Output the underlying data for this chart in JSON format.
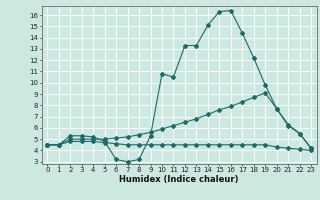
{
  "xlabel": "Humidex (Indice chaleur)",
  "ylabel": "",
  "xlim": [
    -0.5,
    23.5
  ],
  "ylim": [
    2.8,
    16.8
  ],
  "xticks": [
    0,
    1,
    2,
    3,
    4,
    5,
    6,
    7,
    8,
    9,
    10,
    11,
    12,
    13,
    14,
    15,
    16,
    17,
    18,
    19,
    20,
    21,
    22,
    23
  ],
  "yticks": [
    3,
    4,
    5,
    6,
    7,
    8,
    9,
    10,
    11,
    12,
    13,
    14,
    15,
    16
  ],
  "background_color": "#cce8e0",
  "grid_color": "#ffffff",
  "line_color": "#1a6b6b",
  "line1_x": [
    0,
    1,
    2,
    3,
    4,
    5,
    6,
    7,
    8,
    9,
    10,
    11,
    12,
    13,
    14,
    15,
    16,
    17,
    18,
    19,
    20,
    21,
    22,
    23
  ],
  "line1_y": [
    4.5,
    4.5,
    5.3,
    5.3,
    5.2,
    4.8,
    3.2,
    3.0,
    3.2,
    5.3,
    10.8,
    10.5,
    13.3,
    13.3,
    15.1,
    16.3,
    16.4,
    14.4,
    12.2,
    9.8,
    7.7,
    6.3,
    5.5,
    4.2
  ],
  "line2_x": [
    0,
    1,
    2,
    3,
    4,
    5,
    6,
    7,
    8,
    9,
    10,
    11,
    12,
    13,
    14,
    15,
    16,
    17,
    18,
    19,
    20,
    21,
    22,
    23
  ],
  "line2_y": [
    4.5,
    4.5,
    5.0,
    5.0,
    5.0,
    5.0,
    5.1,
    5.2,
    5.4,
    5.6,
    5.9,
    6.2,
    6.5,
    6.8,
    7.2,
    7.6,
    7.9,
    8.3,
    8.7,
    9.1,
    7.7,
    6.2,
    5.5,
    4.2
  ],
  "line3_x": [
    0,
    1,
    2,
    3,
    4,
    5,
    6,
    7,
    8,
    9,
    10,
    11,
    12,
    13,
    14,
    15,
    16,
    17,
    18,
    19,
    20,
    21,
    22,
    23
  ],
  "line3_y": [
    4.5,
    4.5,
    4.8,
    4.8,
    4.8,
    4.7,
    4.6,
    4.5,
    4.5,
    4.5,
    4.5,
    4.5,
    4.5,
    4.5,
    4.5,
    4.5,
    4.5,
    4.5,
    4.5,
    4.5,
    4.3,
    4.2,
    4.1,
    4.0
  ],
  "tick_fontsize": 5.0,
  "xlabel_fontsize": 6.0,
  "marker_size": 2.0,
  "line_width": 0.8
}
